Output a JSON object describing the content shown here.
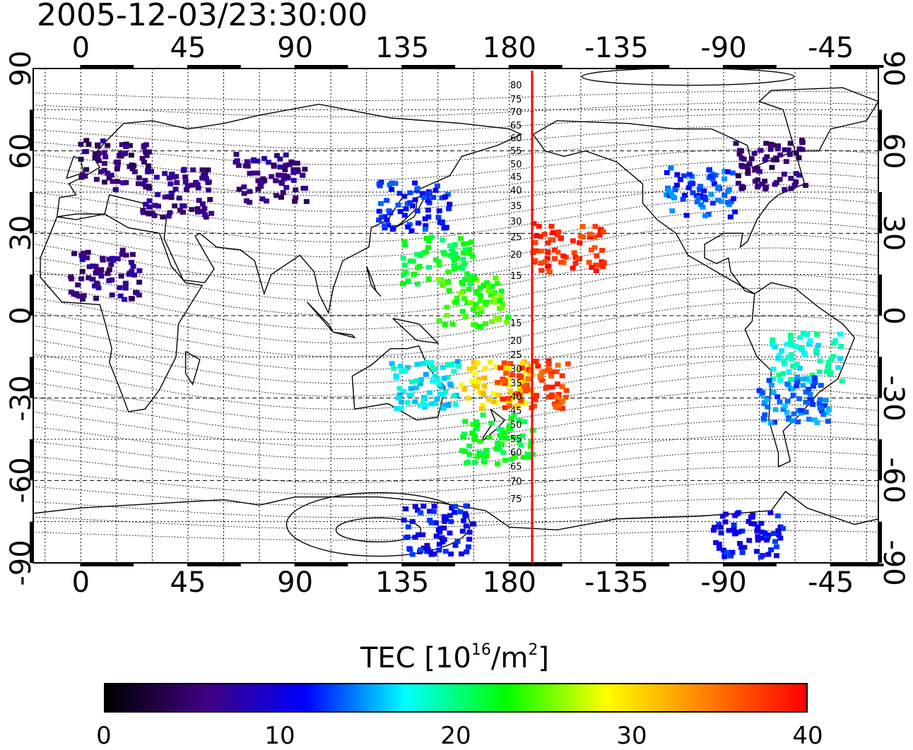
{
  "title": "2005-12-03/23:30:00",
  "x_ticks": [
    "0",
    "45",
    "90",
    "135",
    "180",
    "-135",
    "-90",
    "-45"
  ],
  "y_ticks": [
    "90",
    "60",
    "30",
    "0",
    "-30",
    "-60",
    "-90"
  ],
  "lat_contour_labels": [
    "80",
    "75",
    "70",
    "65",
    "60",
    "55",
    "50",
    "45",
    "40",
    "35",
    "30",
    "25",
    "20",
    "15",
    "15",
    "20",
    "25",
    "30",
    "35",
    "40",
    "45",
    "50",
    "55",
    "60",
    "65",
    "70",
    "75"
  ],
  "colorbar": {
    "label_prefix": "TEC  [10",
    "label_exp1": "16",
    "label_mid": "/m",
    "label_exp2": "2",
    "label_suffix": "]",
    "ticks": [
      "0",
      "10",
      "20",
      "30",
      "40"
    ],
    "colors": [
      "#000000",
      "#400080",
      "#0000ff",
      "#00ffff",
      "#00ff00",
      "#ffff00",
      "#ff8000",
      "#ff0000"
    ]
  },
  "meridian_line_color": "#ff0000",
  "chart_data": {
    "type": "heatmap",
    "title": "2005-12-03/23:30:00",
    "xlim": [
      -20,
      335
    ],
    "ylim": [
      -90,
      90
    ],
    "color_scale": [
      0,
      40
    ],
    "meridian_longitude": 188,
    "clusters": [
      {
        "lon": 15,
        "lat": 55,
        "tec": 5
      },
      {
        "lon": 40,
        "lat": 45,
        "tec": 6
      },
      {
        "lon": 80,
        "lat": 50,
        "tec": 6
      },
      {
        "lon": 140,
        "lat": 40,
        "tec": 12
      },
      {
        "lon": 150,
        "lat": 20,
        "tec": 22
      },
      {
        "lon": 165,
        "lat": 5,
        "tec": 24
      },
      {
        "lon": 205,
        "lat": 25,
        "tec": 38
      },
      {
        "lon": 175,
        "lat": -25,
        "tec": 30
      },
      {
        "lon": 190,
        "lat": -25,
        "tec": 37
      },
      {
        "lon": 145,
        "lat": -25,
        "tec": 17
      },
      {
        "lon": 175,
        "lat": -45,
        "tec": 22
      },
      {
        "lon": 260,
        "lat": 45,
        "tec": 13
      },
      {
        "lon": 290,
        "lat": 55,
        "tec": 5
      },
      {
        "lon": 305,
        "lat": -15,
        "tec": 18
      },
      {
        "lon": 300,
        "lat": -30,
        "tec": 14
      },
      {
        "lon": 10,
        "lat": 15,
        "tec": 6
      },
      {
        "lon": 150,
        "lat": -78,
        "tec": 11
      },
      {
        "lon": 280,
        "lat": -80,
        "tec": 11
      }
    ]
  }
}
